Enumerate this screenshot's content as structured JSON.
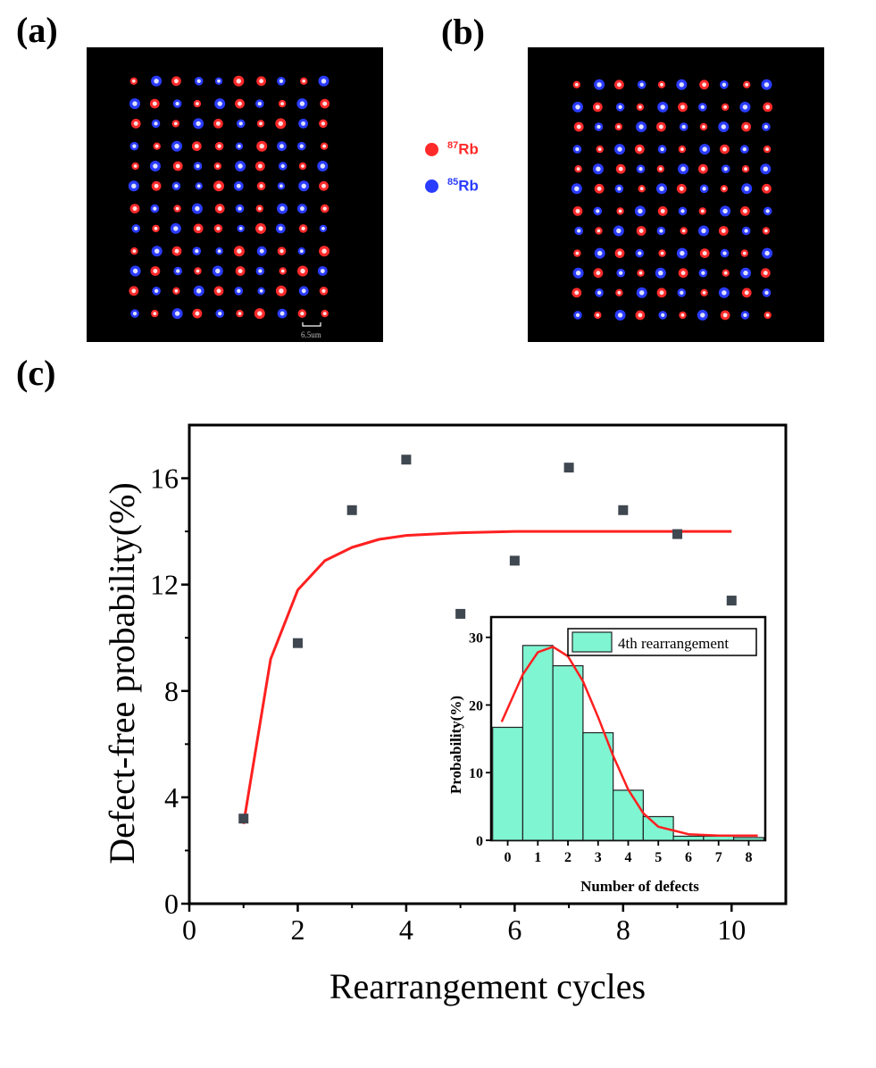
{
  "panel_labels": {
    "a": "(a)",
    "b": "(b)",
    "c": "(c)"
  },
  "legend": {
    "rb87": {
      "mass": "87",
      "symbol": "Rb",
      "color": "#ff2a2a"
    },
    "rb85": {
      "mass": "85",
      "symbol": "Rb",
      "color": "#2a3cff"
    }
  },
  "scale_bar_label": "6.5um",
  "colors": {
    "red_atom": "#ff2a2a",
    "blue_atom": "#2a3cff",
    "marker": "#3f4750",
    "fit": "#ff2020",
    "bar": "#7ff5d2"
  },
  "atom_array_a": [
    "RBRBBRRBRB",
    "BRBRBRBRBR",
    "RBRBRBRRBR",
    "BRBRRBRBBR",
    "RBRBRBRBRB",
    "BRBBRBRBBR",
    "RBRBRBRBBR",
    "BRBRRBRBRB",
    "RBRBBRBRBR",
    "BRBRBRBRRB",
    "RBRBRBBRBR",
    "BRBRBRRBRR"
  ],
  "atom_array_b": [
    "RBRBRBRBRB",
    "BRBRBRBRBR",
    "RBRBRBRBRB",
    "BRBRBRBRBR",
    "RBRBRBRBRB",
    "BRBRBRBRBR",
    "RBRBRBRBRB",
    "BRBRBRBRBR",
    "RBRBRBRBRB",
    "BRBRBRBRBR",
    "RBRBRBRBRB",
    "BRBRBRBRBR"
  ],
  "chart_data": [
    {
      "type": "scatter",
      "title": "",
      "xlabel": "Rearrangement cycles",
      "ylabel": "Defect-free probability(%)",
      "xlim": [
        0,
        11
      ],
      "ylim": [
        0,
        18
      ],
      "xticks": [
        0,
        2,
        4,
        6,
        8,
        10
      ],
      "yticks": [
        0,
        4,
        8,
        12,
        16
      ],
      "series": [
        {
          "name": "measured",
          "x": [
            1,
            2,
            3,
            4,
            5,
            6,
            7,
            8,
            9,
            10
          ],
          "values": [
            3.2,
            9.8,
            14.8,
            16.7,
            10.9,
            12.9,
            16.4,
            14.8,
            13.9,
            11.4
          ]
        },
        {
          "name": "fit",
          "style": "line",
          "x": [
            1,
            1.5,
            2,
            2.5,
            3,
            3.5,
            4,
            5,
            6,
            7,
            8,
            9,
            10
          ],
          "values": [
            3.0,
            9.2,
            11.8,
            12.9,
            13.4,
            13.7,
            13.85,
            13.95,
            14.0,
            14.0,
            14.0,
            14.0,
            14.0
          ]
        }
      ]
    },
    {
      "type": "bar",
      "title": "",
      "xlabel": "Number of defects",
      "ylabel": "Probability(%)",
      "legend": "4th rearrangement",
      "legend_position": "top-right",
      "categories": [
        "0",
        "1",
        "2",
        "3",
        "4",
        "5",
        "6",
        "7",
        "8"
      ],
      "values": [
        16.7,
        28.8,
        25.8,
        15.9,
        7.4,
        3.5,
        0.6,
        0.6,
        0.4
      ],
      "ylim": [
        0,
        33
      ],
      "yticks": [
        0,
        10,
        20,
        30
      ],
      "fit": {
        "x": [
          -0.2,
          0.5,
          1,
          1.5,
          2,
          2.5,
          3,
          3.5,
          4,
          4.5,
          5,
          6,
          7,
          8.3
        ],
        "y": [
          17.5,
          24.5,
          27.8,
          28.6,
          27.2,
          23.5,
          18.2,
          12.5,
          7.5,
          4.0,
          2.0,
          0.9,
          0.7,
          0.7
        ]
      }
    }
  ]
}
